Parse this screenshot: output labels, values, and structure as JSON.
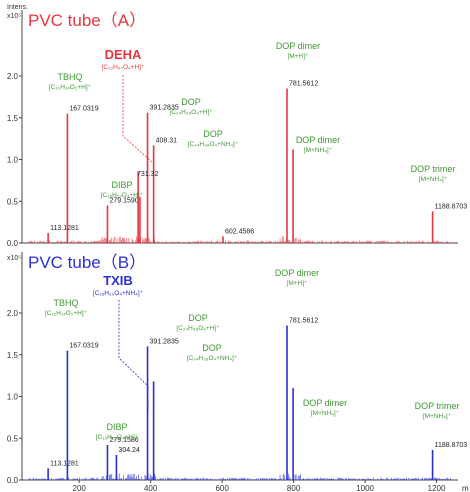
{
  "chart_data": [
    {
      "type": "bar",
      "title": "PVC tube（A）",
      "ylabel": "Intens.",
      "y_multiplier": "x10⁵",
      "xlabel": "",
      "ylim": [
        0,
        2.35
      ],
      "xlim": [
        40,
        1260
      ],
      "y_ticks": [
        "0.0",
        "0.5",
        "1.0",
        "1.5",
        "2.0"
      ],
      "x_ticks": [],
      "color": "#e8363f",
      "peaks": [
        {
          "x": 113.13,
          "y": 0.12,
          "label": "113.1281"
        },
        {
          "x": 167.03,
          "y": 1.55,
          "label": "167.0319"
        },
        {
          "x": 279.16,
          "y": 0.45,
          "label": "279.1590"
        },
        {
          "x": 365,
          "y": 0.85
        },
        {
          "x": 370,
          "y": 0.55
        },
        {
          "x": 391.28,
          "y": 1.56,
          "label": "391.2835"
        },
        {
          "x": 408.31,
          "y": 1.17,
          "label": "408.31"
        },
        {
          "x": 602.46,
          "y": 0.08,
          "label": "602.4586"
        },
        {
          "x": 781.56,
          "y": 1.85,
          "label": "781.5612"
        },
        {
          "x": 798.6,
          "y": 1.12
        },
        {
          "x": 1188.87,
          "y": 0.38,
          "label": "1188.8703"
        }
      ],
      "annotations": [
        {
          "name": "DEHA",
          "formula": "[C₂₂H₄₂O₄+H]⁺",
          "mass": "731.32",
          "color": "#e8363f"
        },
        {
          "name": "TBHQ",
          "formula": "[C₁₀H₁₄O₂+H]⁺",
          "color": "#3f9a35"
        },
        {
          "name": "DIBP",
          "formula": "[C₁₆H₂₂O₄+H]⁺",
          "color": "#3f9a35"
        },
        {
          "name": "DOP",
          "formula": "[C₂₄H₃₈O₄+H]⁺",
          "color": "#3f9a35"
        },
        {
          "name": "DOP",
          "formula": "[C₂₄H₃₈O₄+NH₄]⁺",
          "color": "#3f9a35"
        },
        {
          "name": "DOP dimer",
          "formula": "[M+H]⁺",
          "color": "#3f9a35"
        },
        {
          "name": "DOP dimer",
          "formula": "[M+NH₄]⁺",
          "color": "#3f9a35"
        },
        {
          "name": "DOP trimer",
          "formula": "[M+NH₄]⁺",
          "color": "#3f9a35"
        }
      ]
    },
    {
      "type": "bar",
      "title": "PVC tube（B）",
      "ylabel": "",
      "y_multiplier": "x10⁵",
      "xlabel": "m",
      "ylim": [
        0,
        2.35
      ],
      "xlim": [
        40,
        1260
      ],
      "y_ticks": [
        "0.0",
        "0.5",
        "1.0",
        "1.5",
        "2.0"
      ],
      "x_ticks": [
        "200",
        "400",
        "600",
        "800",
        "1000",
        "1200"
      ],
      "color": "#2b2fd2",
      "peaks": [
        {
          "x": 113.13,
          "y": 0.14,
          "label": "113.1281"
        },
        {
          "x": 167.03,
          "y": 1.55,
          "label": "167.0319"
        },
        {
          "x": 279.16,
          "y": 0.42,
          "label": "279.1586"
        },
        {
          "x": 304.24,
          "y": 0.3,
          "label": "304.24"
        },
        {
          "x": 391.28,
          "y": 1.6,
          "label": "391.2835"
        },
        {
          "x": 408.3,
          "y": 1.18
        },
        {
          "x": 781.56,
          "y": 1.85,
          "label": "781.5612"
        },
        {
          "x": 798.6,
          "y": 1.1
        },
        {
          "x": 1188.87,
          "y": 0.36,
          "label": "1188.8703"
        }
      ],
      "annotations": [
        {
          "name": "TXIB",
          "formula": "[C₁₆H₃₀O₄+NH₄]⁺",
          "color": "#2b2fd2"
        },
        {
          "name": "TBHQ",
          "formula": "[C₁₀H₁₄O₂+H]⁺",
          "color": "#3f9a35"
        },
        {
          "name": "DIBP",
          "formula": "[C₁₆H₂₂O₄+H]⁺",
          "color": "#3f9a35"
        },
        {
          "name": "DOP",
          "formula": "[C₂₄H₃₈O₄+H]⁺",
          "color": "#3f9a35"
        },
        {
          "name": "DOP",
          "formula": "[C₂₄H₃₈O₄+NH₄]⁺",
          "color": "#3f9a35"
        },
        {
          "name": "DOP dimer",
          "formula": "[M+H]⁺",
          "color": "#3f9a35"
        },
        {
          "name": "DOP dimer",
          "formula": "[M+NH₄]⁺",
          "color": "#3f9a35"
        },
        {
          "name": "DOP trimer",
          "formula": "[M+NH₄]⁺",
          "color": "#3f9a35"
        }
      ]
    }
  ],
  "colors": {
    "label_green": "#3f9a35",
    "series_a": "#e8363f",
    "series_b": "#2b2fd2",
    "axis": "#444444"
  }
}
